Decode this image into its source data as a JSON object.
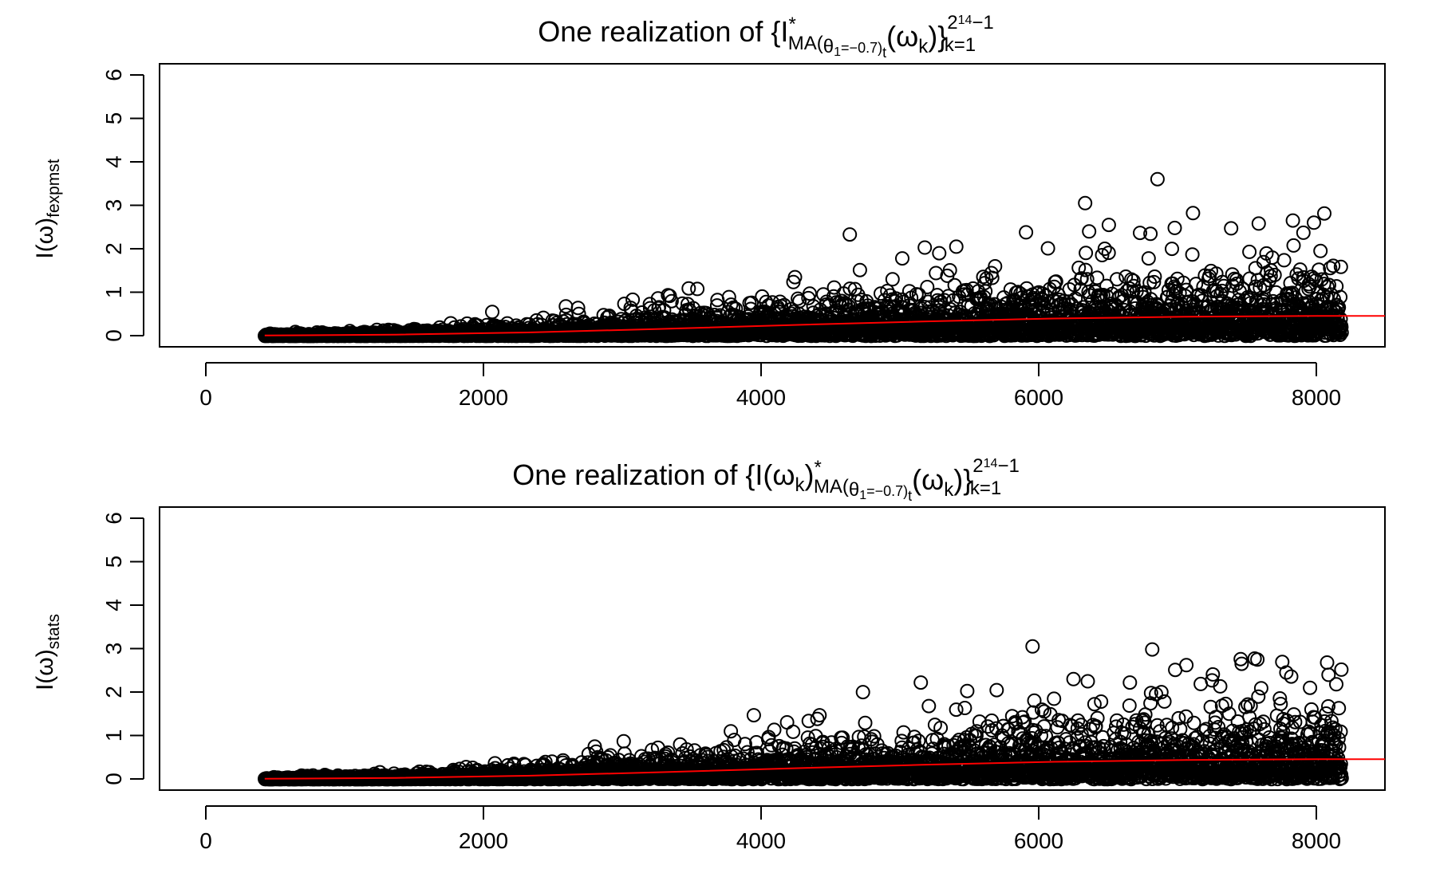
{
  "chart_data": [
    {
      "type": "scatter",
      "title_parts": {
        "prefix": "One realization of {I",
        "sup_star": "*",
        "sub_process": "MA(",
        "sub_theta": "θ",
        "sub_theta_index": "1",
        "sub_theta_value": "=−0.7)",
        "sub_t": "t",
        "omega_open": "(ω",
        "omega_sub": "k",
        "omega_close": ")}",
        "upper_limit_base": "2",
        "upper_limit_exp": "14",
        "upper_limit_rest": "−1",
        "lower_limit": "k=1"
      },
      "ylabel_parts": {
        "main": "I(ω)",
        "sub": "fexpmst"
      },
      "x_ticks": [
        "0",
        "2000",
        "4000",
        "6000",
        "8000"
      ],
      "y_ticks": [
        "0",
        "1",
        "2",
        "3",
        "4",
        "5",
        "6"
      ],
      "xlim": [
        -800,
        8520
      ],
      "ylim": [
        -0.25,
        6.25
      ],
      "x_count": 8191,
      "trend": {
        "x": [
          0,
          1000,
          2000,
          3000,
          4000,
          5000,
          6000,
          7000,
          8000,
          8520
        ],
        "y": [
          0.01,
          0.03,
          0.08,
          0.16,
          0.25,
          0.33,
          0.4,
          0.44,
          0.46,
          0.46
        ]
      },
      "outliers": [
        {
          "x": 6790,
          "y": 3.6
        },
        {
          "x": 6240,
          "y": 3.05
        },
        {
          "x": 4450,
          "y": 2.33
        },
        {
          "x": 7060,
          "y": 2.82
        },
        {
          "x": 7820,
          "y": 2.65
        },
        {
          "x": 7560,
          "y": 2.58
        },
        {
          "x": 7980,
          "y": 2.6
        },
        {
          "x": 6420,
          "y": 2.55
        },
        {
          "x": 7350,
          "y": 2.47
        },
        {
          "x": 5790,
          "y": 2.38
        },
        {
          "x": 6270,
          "y": 2.4
        },
        {
          "x": 5020,
          "y": 2.03
        },
        {
          "x": 5260,
          "y": 2.05
        },
        {
          "x": 5130,
          "y": 1.9
        },
        {
          "x": 6900,
          "y": 2.0
        },
        {
          "x": 8030,
          "y": 1.95
        },
        {
          "x": 7900,
          "y": 2.37
        },
        {
          "x": 1730,
          "y": 0.55
        },
        {
          "x": 2290,
          "y": 0.68
        },
        {
          "x": 3290,
          "y": 1.08
        },
        {
          "x": 3080,
          "y": 0.92
        }
      ],
      "series_color": "#000000",
      "trend_color": "#ff0000"
    },
    {
      "type": "scatter",
      "title_parts": {
        "prefix": "One realization of {I(ω",
        "prefix_sub": "k",
        "prefix_close": ")",
        "sup_star": "*",
        "sub_process": "MA(",
        "sub_theta": "θ",
        "sub_theta_index": "1",
        "sub_theta_value": "=−0.7)",
        "sub_t": "t",
        "omega_open": "(ω",
        "omega_sub": "k",
        "omega_close": ")}",
        "upper_limit_base": "2",
        "upper_limit_exp": "14",
        "upper_limit_rest": "−1",
        "lower_limit": "k=1"
      },
      "ylabel_parts": {
        "main": "I(ω)",
        "sub": "stats"
      },
      "x_ticks": [
        "0",
        "2000",
        "4000",
        "6000",
        "8000"
      ],
      "y_ticks": [
        "0",
        "1",
        "2",
        "3",
        "4",
        "5",
        "6"
      ],
      "xlim": [
        -800,
        8520
      ],
      "ylim": [
        -0.25,
        6.25
      ],
      "x_count": 8191,
      "trend": {
        "x": [
          0,
          1000,
          2000,
          3000,
          4000,
          5000,
          6000,
          7000,
          8000,
          8520
        ],
        "y": [
          0.01,
          0.03,
          0.08,
          0.16,
          0.25,
          0.33,
          0.4,
          0.44,
          0.46,
          0.46
        ]
      },
      "outliers": [
        {
          "x": 5840,
          "y": 3.05
        },
        {
          "x": 6750,
          "y": 2.98
        },
        {
          "x": 7550,
          "y": 2.75
        },
        {
          "x": 7430,
          "y": 2.65
        },
        {
          "x": 8080,
          "y": 2.68
        },
        {
          "x": 7010,
          "y": 2.62
        },
        {
          "x": 7770,
          "y": 2.45
        },
        {
          "x": 4990,
          "y": 2.22
        },
        {
          "x": 6580,
          "y": 2.22
        },
        {
          "x": 6260,
          "y": 2.25
        },
        {
          "x": 8150,
          "y": 2.18
        },
        {
          "x": 4550,
          "y": 2.0
        },
        {
          "x": 7950,
          "y": 2.1
        },
        {
          "x": 3720,
          "y": 1.47
        },
        {
          "x": 4220,
          "y": 1.47
        },
        {
          "x": 2730,
          "y": 0.87
        },
        {
          "x": 2510,
          "y": 0.75
        },
        {
          "x": 6820,
          "y": 2.0
        }
      ],
      "series_color": "#000000",
      "trend_color": "#ff0000"
    }
  ]
}
